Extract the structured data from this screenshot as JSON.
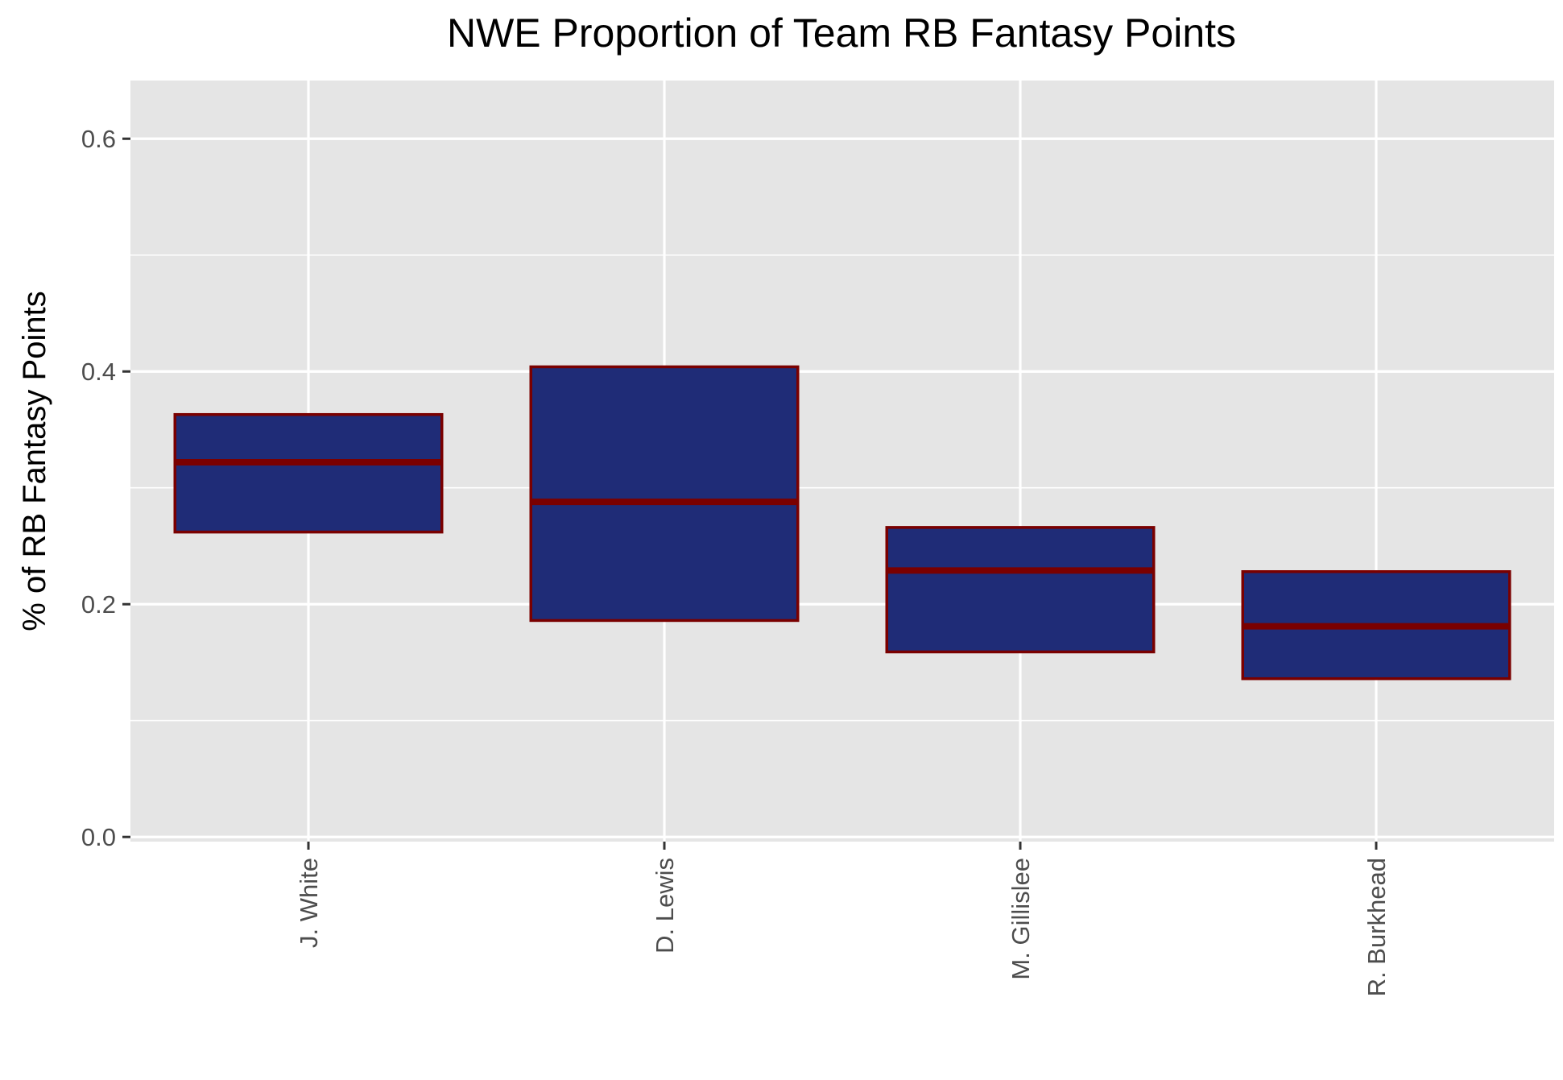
{
  "chart_data": {
    "type": "boxplot",
    "title": "NWE Proportion of Team RB Fantasy Points",
    "xlabel": "",
    "ylabel": "% of RB Fantasy Points",
    "ylim": [
      -0.004,
      0.65
    ],
    "yticks": [
      0.0,
      0.2,
      0.4,
      0.6
    ],
    "ytick_labels": [
      "0.0",
      "0.2",
      "0.4",
      "0.6"
    ],
    "y_minor_gridlines": [
      0.1,
      0.3,
      0.5
    ],
    "grid": true,
    "categories": [
      "J. White",
      "D. Lewis",
      "M. Gillislee",
      "R. Burkhead"
    ],
    "boxes": [
      {
        "category": "J. White",
        "lower": 0.262,
        "median": 0.322,
        "upper": 0.363
      },
      {
        "category": "D. Lewis",
        "lower": 0.186,
        "median": 0.288,
        "upper": 0.404
      },
      {
        "category": "M. Gillislee",
        "lower": 0.159,
        "median": 0.229,
        "upper": 0.266
      },
      {
        "category": "R. Burkhead",
        "lower": 0.136,
        "median": 0.181,
        "upper": 0.228
      }
    ],
    "colors": {
      "box_fill": "#1f2c77",
      "box_outline": "#7a0000",
      "panel_background": "#e5e5e5",
      "gridline": "#ffffff",
      "tick_mark": "#333333"
    }
  }
}
